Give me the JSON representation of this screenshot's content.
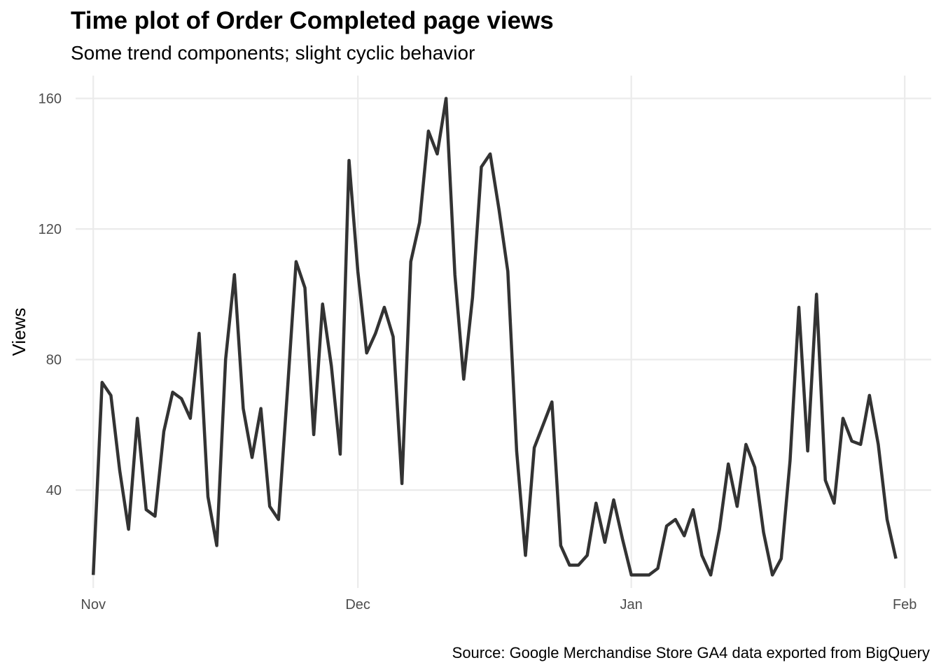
{
  "chart_data": {
    "type": "line",
    "title": "Time plot of Order Completed page views",
    "subtitle": "Some trend components; slight cyclic behavior",
    "caption": "Source: Google Merchandise Store GA4 data exported from BigQuery",
    "xlabel": "",
    "ylabel": "Views",
    "x_start": "2020-11-01",
    "x_ticks": [
      {
        "label": "Nov",
        "date": "2020-11-01"
      },
      {
        "label": "Dec",
        "date": "2020-12-01"
      },
      {
        "label": "Jan",
        "date": "2021-01-01"
      },
      {
        "label": "Feb",
        "date": "2021-02-01"
      }
    ],
    "y_ticks": [
      40,
      80,
      120,
      160
    ],
    "ylim": [
      10,
      167
    ],
    "xlim": [
      "2020-10-30",
      "2021-02-04"
    ],
    "grid": true,
    "line_color": "#333333",
    "series": [
      {
        "values": [
          14,
          73,
          69,
          46,
          28,
          62,
          34,
          32,
          58,
          70,
          68,
          62,
          88,
          38,
          23,
          80,
          106,
          65,
          50,
          65,
          35,
          31,
          70,
          110,
          102,
          57,
          97,
          78,
          51,
          141,
          107,
          82,
          88,
          96,
          87,
          42,
          110,
          122,
          150,
          143,
          160,
          106,
          74,
          99,
          139,
          143,
          126,
          107,
          52,
          20,
          53,
          60,
          67,
          23,
          17,
          17,
          20,
          36,
          24,
          37,
          25,
          14,
          14,
          14,
          16,
          29,
          31,
          26,
          34,
          20,
          14,
          28,
          48,
          35,
          54,
          47,
          27,
          14,
          19,
          49,
          96,
          52,
          100,
          43,
          36,
          62,
          55,
          54,
          69,
          54,
          31,
          19
        ]
      }
    ]
  }
}
